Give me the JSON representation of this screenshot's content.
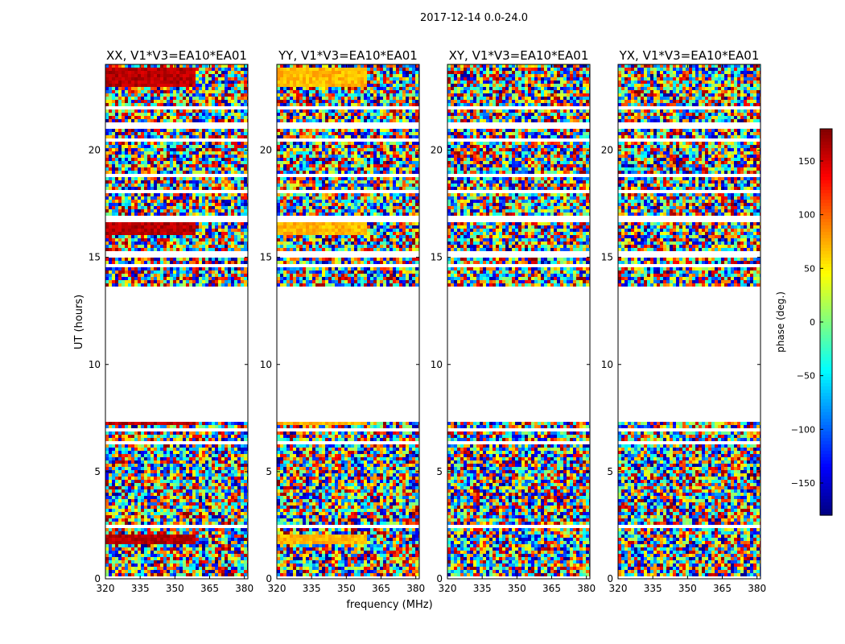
{
  "figure": {
    "suptitle": "2017-12-14 0.0-24.0",
    "xlabel": "frequency (MHz)",
    "ylabel": "UT (hours)"
  },
  "chart_data": {
    "type": "heatmap",
    "title": "2017-12-14 0.0-24.0",
    "xlabel": "frequency (MHz)",
    "ylabel": "UT (hours)",
    "xlim": [
      320,
      381.5
    ],
    "ylim": [
      0,
      24
    ],
    "xticks": [
      320,
      335,
      350,
      365,
      380
    ],
    "yticks": [
      0,
      5,
      10,
      15,
      20
    ],
    "colormap": "jet",
    "colorbar": {
      "label": "phase (deg.)",
      "range": [
        -180,
        180
      ],
      "ticks": [
        -150,
        -100,
        -50,
        0,
        50,
        100,
        150
      ],
      "tick_labels": [
        "−150",
        "−100",
        "−50",
        "0",
        "50",
        "100",
        "150"
      ]
    },
    "data_time_ranges_hours": [
      [
        0,
        7.5
      ],
      [
        13.7,
        24
      ]
    ],
    "empty_time_range_hours": [
      7.5,
      13.7
    ],
    "panels": [
      {
        "title": "XX, V1*V3=EA10*EA01",
        "coherent_phase_deg": 160,
        "coherent_phase_ranges_hours": [
          [
            16.0,
            17.0
          ],
          [
            1.6,
            2.0
          ],
          [
            7.1,
            7.4
          ],
          [
            22.9,
            23.8
          ]
        ]
      },
      {
        "title": "YY, V1*V3=EA10*EA01",
        "coherent_phase_deg": 70,
        "coherent_phase_ranges_hours": [
          [
            16.0,
            17.0
          ],
          [
            1.6,
            2.0
          ],
          [
            7.1,
            7.4
          ],
          [
            22.9,
            23.8
          ]
        ]
      },
      {
        "title": "XY, V1*V3=EA10*EA01",
        "coherent_phase_deg": null,
        "coherent_phase_ranges_hours": []
      },
      {
        "title": "YX, V1*V3=EA10*EA01",
        "coherent_phase_deg": null,
        "coherent_phase_ranges_hours": []
      }
    ]
  }
}
